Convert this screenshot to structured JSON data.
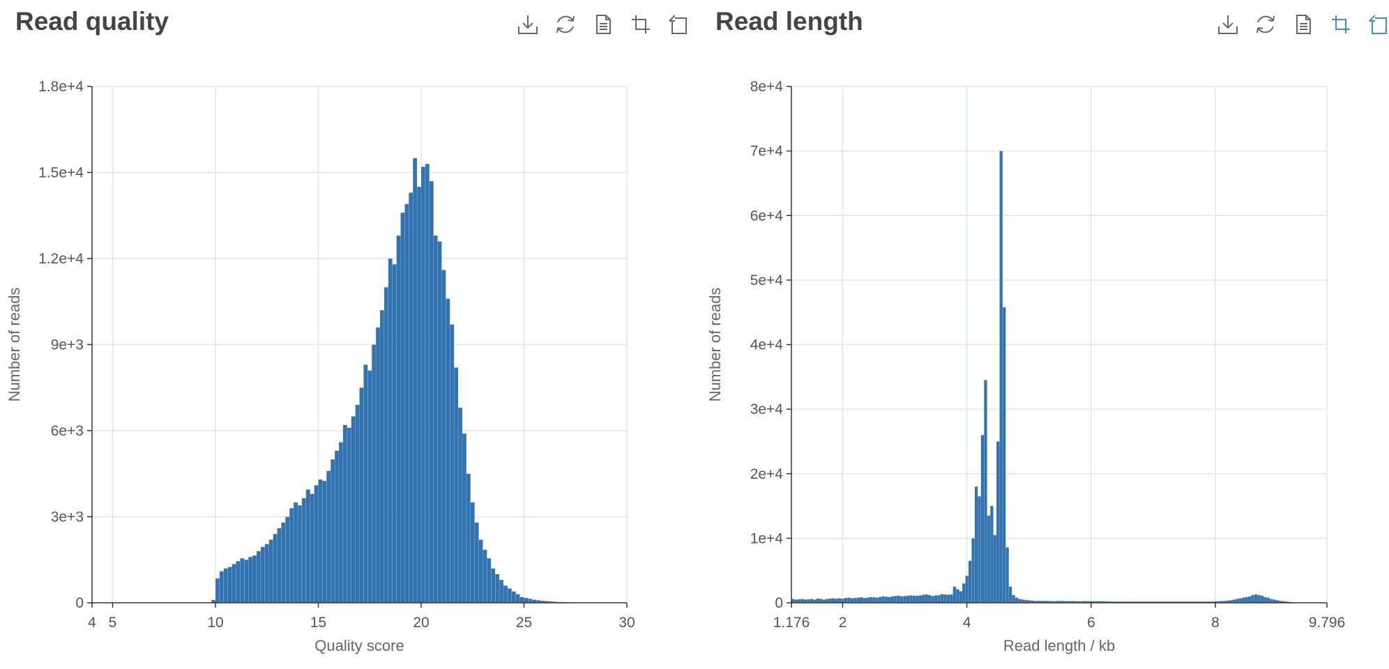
{
  "colors": {
    "bar": "#3373b0",
    "grid": "#e0e4f0",
    "axis": "#333333",
    "icon": "#666666",
    "icon_active": "#3a8dd8"
  },
  "panels": [
    {
      "title": "Read quality",
      "toolbar": [
        {
          "name": "download-icon",
          "active": false
        },
        {
          "name": "refresh-icon",
          "active": false
        },
        {
          "name": "document-icon",
          "active": false
        },
        {
          "name": "zoom-select-icon",
          "active": false
        },
        {
          "name": "zoom-reset-icon",
          "active": false
        }
      ]
    },
    {
      "title": "Read length",
      "toolbar": [
        {
          "name": "download-icon",
          "active": false
        },
        {
          "name": "refresh-icon",
          "active": false
        },
        {
          "name": "document-icon",
          "active": false
        },
        {
          "name": "zoom-select-icon",
          "active": true
        },
        {
          "name": "zoom-reset-icon",
          "active": true
        }
      ]
    }
  ],
  "chart_data": [
    {
      "type": "bar",
      "title": "Read quality",
      "xlabel": "Quality score",
      "ylabel": "Number of reads",
      "xlim": [
        4,
        30
      ],
      "ylim": [
        0,
        18000
      ],
      "xticks": [
        4,
        5,
        10,
        15,
        20,
        25,
        30
      ],
      "xtick_labels": [
        "4",
        "5",
        "10",
        "15",
        "20",
        "25",
        "30"
      ],
      "yticks": [
        0,
        3000,
        6000,
        9000,
        12000,
        15000,
        18000
      ],
      "ytick_labels": [
        "0",
        "3e+3",
        "6e+3",
        "9e+3",
        "1.2e+4",
        "1.5e+4",
        "1.8e+4"
      ],
      "x_grid": [
        5,
        10,
        15,
        20,
        25,
        30
      ],
      "y_grid": [
        3000,
        6000,
        9000,
        12000,
        15000,
        18000
      ],
      "grid": true,
      "bin_start": 9.8,
      "bin_width": 0.2,
      "values": [
        100,
        850,
        1100,
        1200,
        1250,
        1350,
        1450,
        1550,
        1500,
        1600,
        1650,
        1800,
        1950,
        2050,
        2200,
        2400,
        2600,
        2800,
        3000,
        3300,
        3500,
        3400,
        3650,
        3950,
        3800,
        4100,
        4300,
        4250,
        4600,
        5000,
        5300,
        5600,
        6200,
        6100,
        6500,
        6900,
        7500,
        8300,
        8100,
        9000,
        9600,
        10200,
        11000,
        12000,
        11800,
        12800,
        13600,
        13900,
        14300,
        15500,
        14500,
        15200,
        15300,
        14700,
        12800,
        12600,
        11600,
        10600,
        9700,
        8200,
        6800,
        5900,
        4500,
        3500,
        2800,
        2200,
        1850,
        1550,
        1200,
        1000,
        800,
        600,
        500,
        400,
        300,
        200,
        170,
        140,
        110,
        90,
        70,
        60,
        50,
        40,
        30,
        25,
        20,
        15,
        12,
        10,
        8,
        6,
        5,
        4,
        3,
        2,
        2,
        1,
        1,
        1
      ]
    },
    {
      "type": "bar",
      "title": "Read length",
      "xlabel": "Read length / kb",
      "ylabel": "Number of reads",
      "xlim": [
        1.176,
        9.796
      ],
      "ylim": [
        0,
        80000
      ],
      "xticks": [
        1.176,
        2,
        4,
        6,
        8,
        9.796
      ],
      "xtick_labels": [
        "1.176",
        "2",
        "4",
        "6",
        "8",
        "9.796"
      ],
      "yticks": [
        0,
        10000,
        20000,
        30000,
        40000,
        50000,
        60000,
        70000,
        80000
      ],
      "ytick_labels": [
        "0",
        "1e+4",
        "2e+4",
        "3e+4",
        "4e+4",
        "5e+4",
        "6e+4",
        "7e+4",
        "8e+4"
      ],
      "x_grid": [
        2,
        4,
        6,
        8,
        9.796
      ],
      "y_grid": [
        10000,
        20000,
        30000,
        40000,
        50000,
        60000,
        70000,
        80000
      ],
      "grid": true,
      "bin_start": 1.176,
      "bin_width": 0.05,
      "values": [
        600,
        500,
        550,
        600,
        500,
        550,
        600,
        500,
        650,
        600,
        500,
        600,
        650,
        700,
        650,
        700,
        650,
        750,
        800,
        700,
        750,
        800,
        850,
        750,
        800,
        900,
        850,
        800,
        900,
        1000,
        950,
        900,
        1000,
        1050,
        1100,
        1000,
        1050,
        1100,
        1150,
        1100,
        1100,
        1150,
        1250,
        1300,
        1200,
        1050,
        1150,
        1200,
        1350,
        1300,
        1250,
        1300,
        2500,
        2100,
        1800,
        3000,
        4200,
        6500,
        10000,
        18000,
        16500,
        26000,
        34500,
        13500,
        15000,
        10500,
        25000,
        70000,
        45800,
        8600,
        2500,
        1200,
        800,
        600,
        500,
        450,
        400,
        350,
        300,
        300,
        300,
        300,
        300,
        280,
        260,
        280,
        300,
        280,
        260,
        270,
        280,
        260,
        250,
        250,
        270,
        260,
        250,
        250,
        250,
        250,
        250,
        220,
        220,
        200,
        200,
        200,
        200,
        200,
        200,
        200,
        200,
        200,
        200,
        200,
        200,
        200,
        200,
        200,
        200,
        200,
        200,
        200,
        200,
        200,
        200,
        200,
        200,
        200,
        200,
        200,
        200,
        200,
        200,
        200,
        200,
        200,
        220,
        250,
        280,
        300,
        350,
        400,
        500,
        600,
        700,
        800,
        900,
        1000,
        1200,
        1300,
        1200,
        1100,
        900,
        800,
        600,
        500,
        400,
        300,
        250,
        200,
        150,
        100,
        80,
        60,
        50,
        40,
        30,
        20,
        20,
        10,
        10
      ]
    }
  ]
}
